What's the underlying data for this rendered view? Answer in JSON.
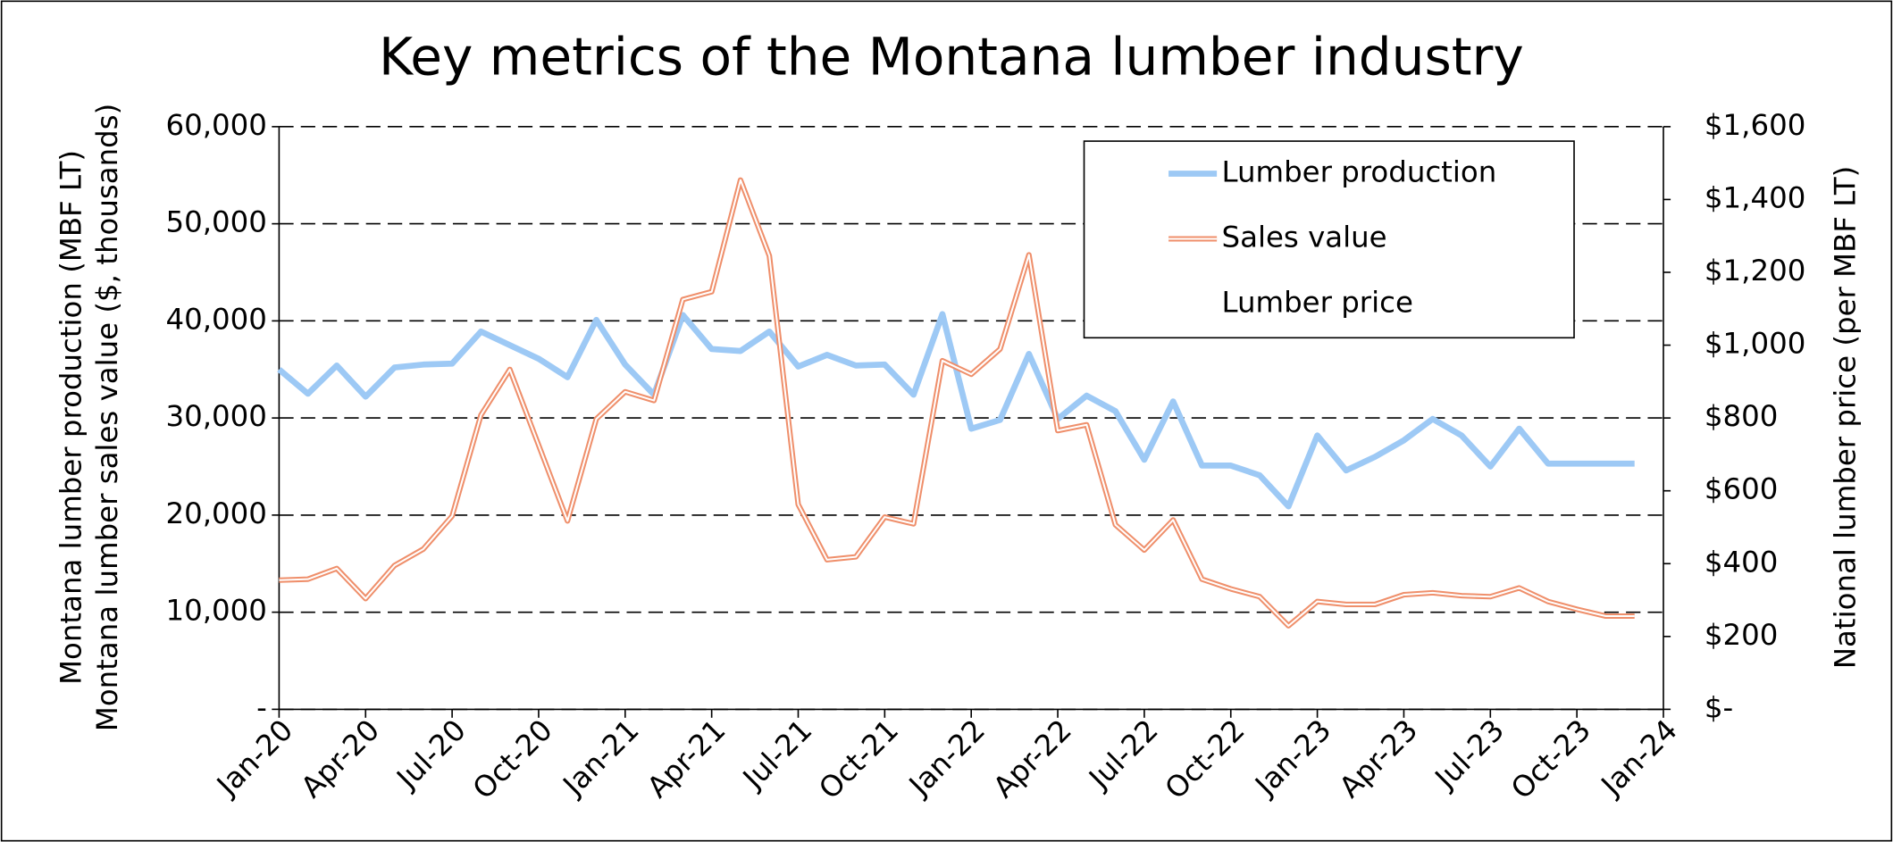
{
  "chart_data": {
    "type": "line",
    "title": "Key metrics of the Montana lumber industry",
    "y_label": [
      "Montana lumber production (MBF LT)",
      "Montana lumber sales value ($, thousands)"
    ],
    "y2_label": "National lumber price (per MBF LT)",
    "x": [
      "2020-01",
      "2020-02",
      "2020-03",
      "2020-04",
      "2020-05",
      "2020-06",
      "2020-07",
      "2020-08",
      "2020-09",
      "2020-10",
      "2020-11",
      "2020-12",
      "2021-01",
      "2021-02",
      "2021-03",
      "2021-04",
      "2021-05",
      "2021-06",
      "2021-07",
      "2021-08",
      "2021-09",
      "2021-10",
      "2021-11",
      "2021-12",
      "2022-01",
      "2022-02",
      "2022-03",
      "2022-04",
      "2022-05",
      "2022-06",
      "2022-07",
      "2022-08",
      "2022-09",
      "2022-10",
      "2022-11",
      "2022-12",
      "2023-01",
      "2023-02",
      "2023-03",
      "2023-04",
      "2023-05",
      "2023-06",
      "2023-07",
      "2023-08",
      "2023-09",
      "2023-10",
      "2023-11",
      "2023-12"
    ],
    "xlim": [
      "2020-01",
      "2024-01"
    ],
    "xticks": [
      {
        "value": "2020-01",
        "label": "Jan-20"
      },
      {
        "value": "2020-04",
        "label": "Apr-20"
      },
      {
        "value": "2020-07",
        "label": "Jul-20"
      },
      {
        "value": "2020-10",
        "label": "Oct-20"
      },
      {
        "value": "2021-01",
        "label": "Jan-21"
      },
      {
        "value": "2021-04",
        "label": "Apr-21"
      },
      {
        "value": "2021-07",
        "label": "Jul-21"
      },
      {
        "value": "2021-10",
        "label": "Oct-21"
      },
      {
        "value": "2022-01",
        "label": "Jan-22"
      },
      {
        "value": "2022-04",
        "label": "Apr-22"
      },
      {
        "value": "2022-07",
        "label": "Jul-22"
      },
      {
        "value": "2022-10",
        "label": "Oct-22"
      },
      {
        "value": "2023-01",
        "label": "Jan-23"
      },
      {
        "value": "2023-04",
        "label": "Apr-23"
      },
      {
        "value": "2023-07",
        "label": "Jul-23"
      },
      {
        "value": "2023-10",
        "label": "Oct-23"
      },
      {
        "value": "2024-01",
        "label": "Jan-24"
      }
    ],
    "ylim": [
      0,
      60000
    ],
    "yticks": [
      {
        "value": 0,
        "label": "-"
      },
      {
        "value": 10000,
        "label": "10,000"
      },
      {
        "value": 20000,
        "label": "20,000"
      },
      {
        "value": 30000,
        "label": "30,000"
      },
      {
        "value": 40000,
        "label": "40,000"
      },
      {
        "value": 50000,
        "label": "50,000"
      },
      {
        "value": 60000,
        "label": "60,000"
      }
    ],
    "y2lim": [
      0,
      1600
    ],
    "y2ticks": [
      {
        "value": 0,
        "label": "$-"
      },
      {
        "value": 200,
        "label": "$200"
      },
      {
        "value": 400,
        "label": "$400"
      },
      {
        "value": 600,
        "label": "$600"
      },
      {
        "value": 800,
        "label": "$800"
      },
      {
        "value": 1000,
        "label": "$1,000"
      },
      {
        "value": 1200,
        "label": "$1,200"
      },
      {
        "value": 1400,
        "label": "$1,400"
      },
      {
        "value": 1600,
        "label": "$1,600"
      }
    ],
    "grid": true,
    "legend": "upper right",
    "series": [
      {
        "name": "Lumber production",
        "color": "#9dc9f5",
        "values": [
          35000,
          32500,
          35400,
          32200,
          35200,
          35500,
          35600,
          38900,
          37500,
          36100,
          34200,
          40100,
          35500,
          32400,
          40600,
          37100,
          36900,
          38900,
          35300,
          36500,
          35400,
          35500,
          32400,
          40700,
          28900,
          29800,
          36600,
          29900,
          32300,
          30700,
          25700,
          31700,
          25100,
          25100,
          24100,
          20900,
          28200,
          24600,
          26000,
          27700,
          29900,
          28200,
          25000,
          28900,
          25300,
          25300,
          25300,
          25300
        ]
      },
      {
        "name": "Sales value",
        "color": "#ef8f6b",
        "line_style": "double",
        "values": [
          13300,
          13400,
          14500,
          11400,
          14800,
          16500,
          19900,
          30300,
          35000,
          27200,
          19400,
          29900,
          32700,
          31800,
          42200,
          43000,
          54500,
          46700,
          21100,
          15400,
          15700,
          19800,
          19100,
          35900,
          34500,
          37100,
          46800,
          28700,
          29300,
          19000,
          16400,
          19500,
          13400,
          12400,
          11600,
          8600,
          11100,
          10800,
          10800,
          11800,
          12000,
          11700,
          11600,
          12500,
          11100,
          10300,
          9600,
          9600
        ]
      },
      {
        "name": "Lumber price",
        "color": "#ffffff",
        "axis": "y2",
        "values": [
          null,
          null,
          null,
          null,
          null,
          null,
          null,
          null,
          null,
          null,
          null,
          null,
          null,
          null,
          null,
          null,
          null,
          null,
          null,
          null,
          null,
          null,
          null,
          null,
          null,
          null,
          null,
          null,
          null,
          null,
          null,
          null,
          null,
          null,
          null,
          null,
          null,
          null,
          null,
          null,
          null,
          null,
          null,
          null,
          null,
          null,
          null,
          null
        ]
      }
    ]
  }
}
